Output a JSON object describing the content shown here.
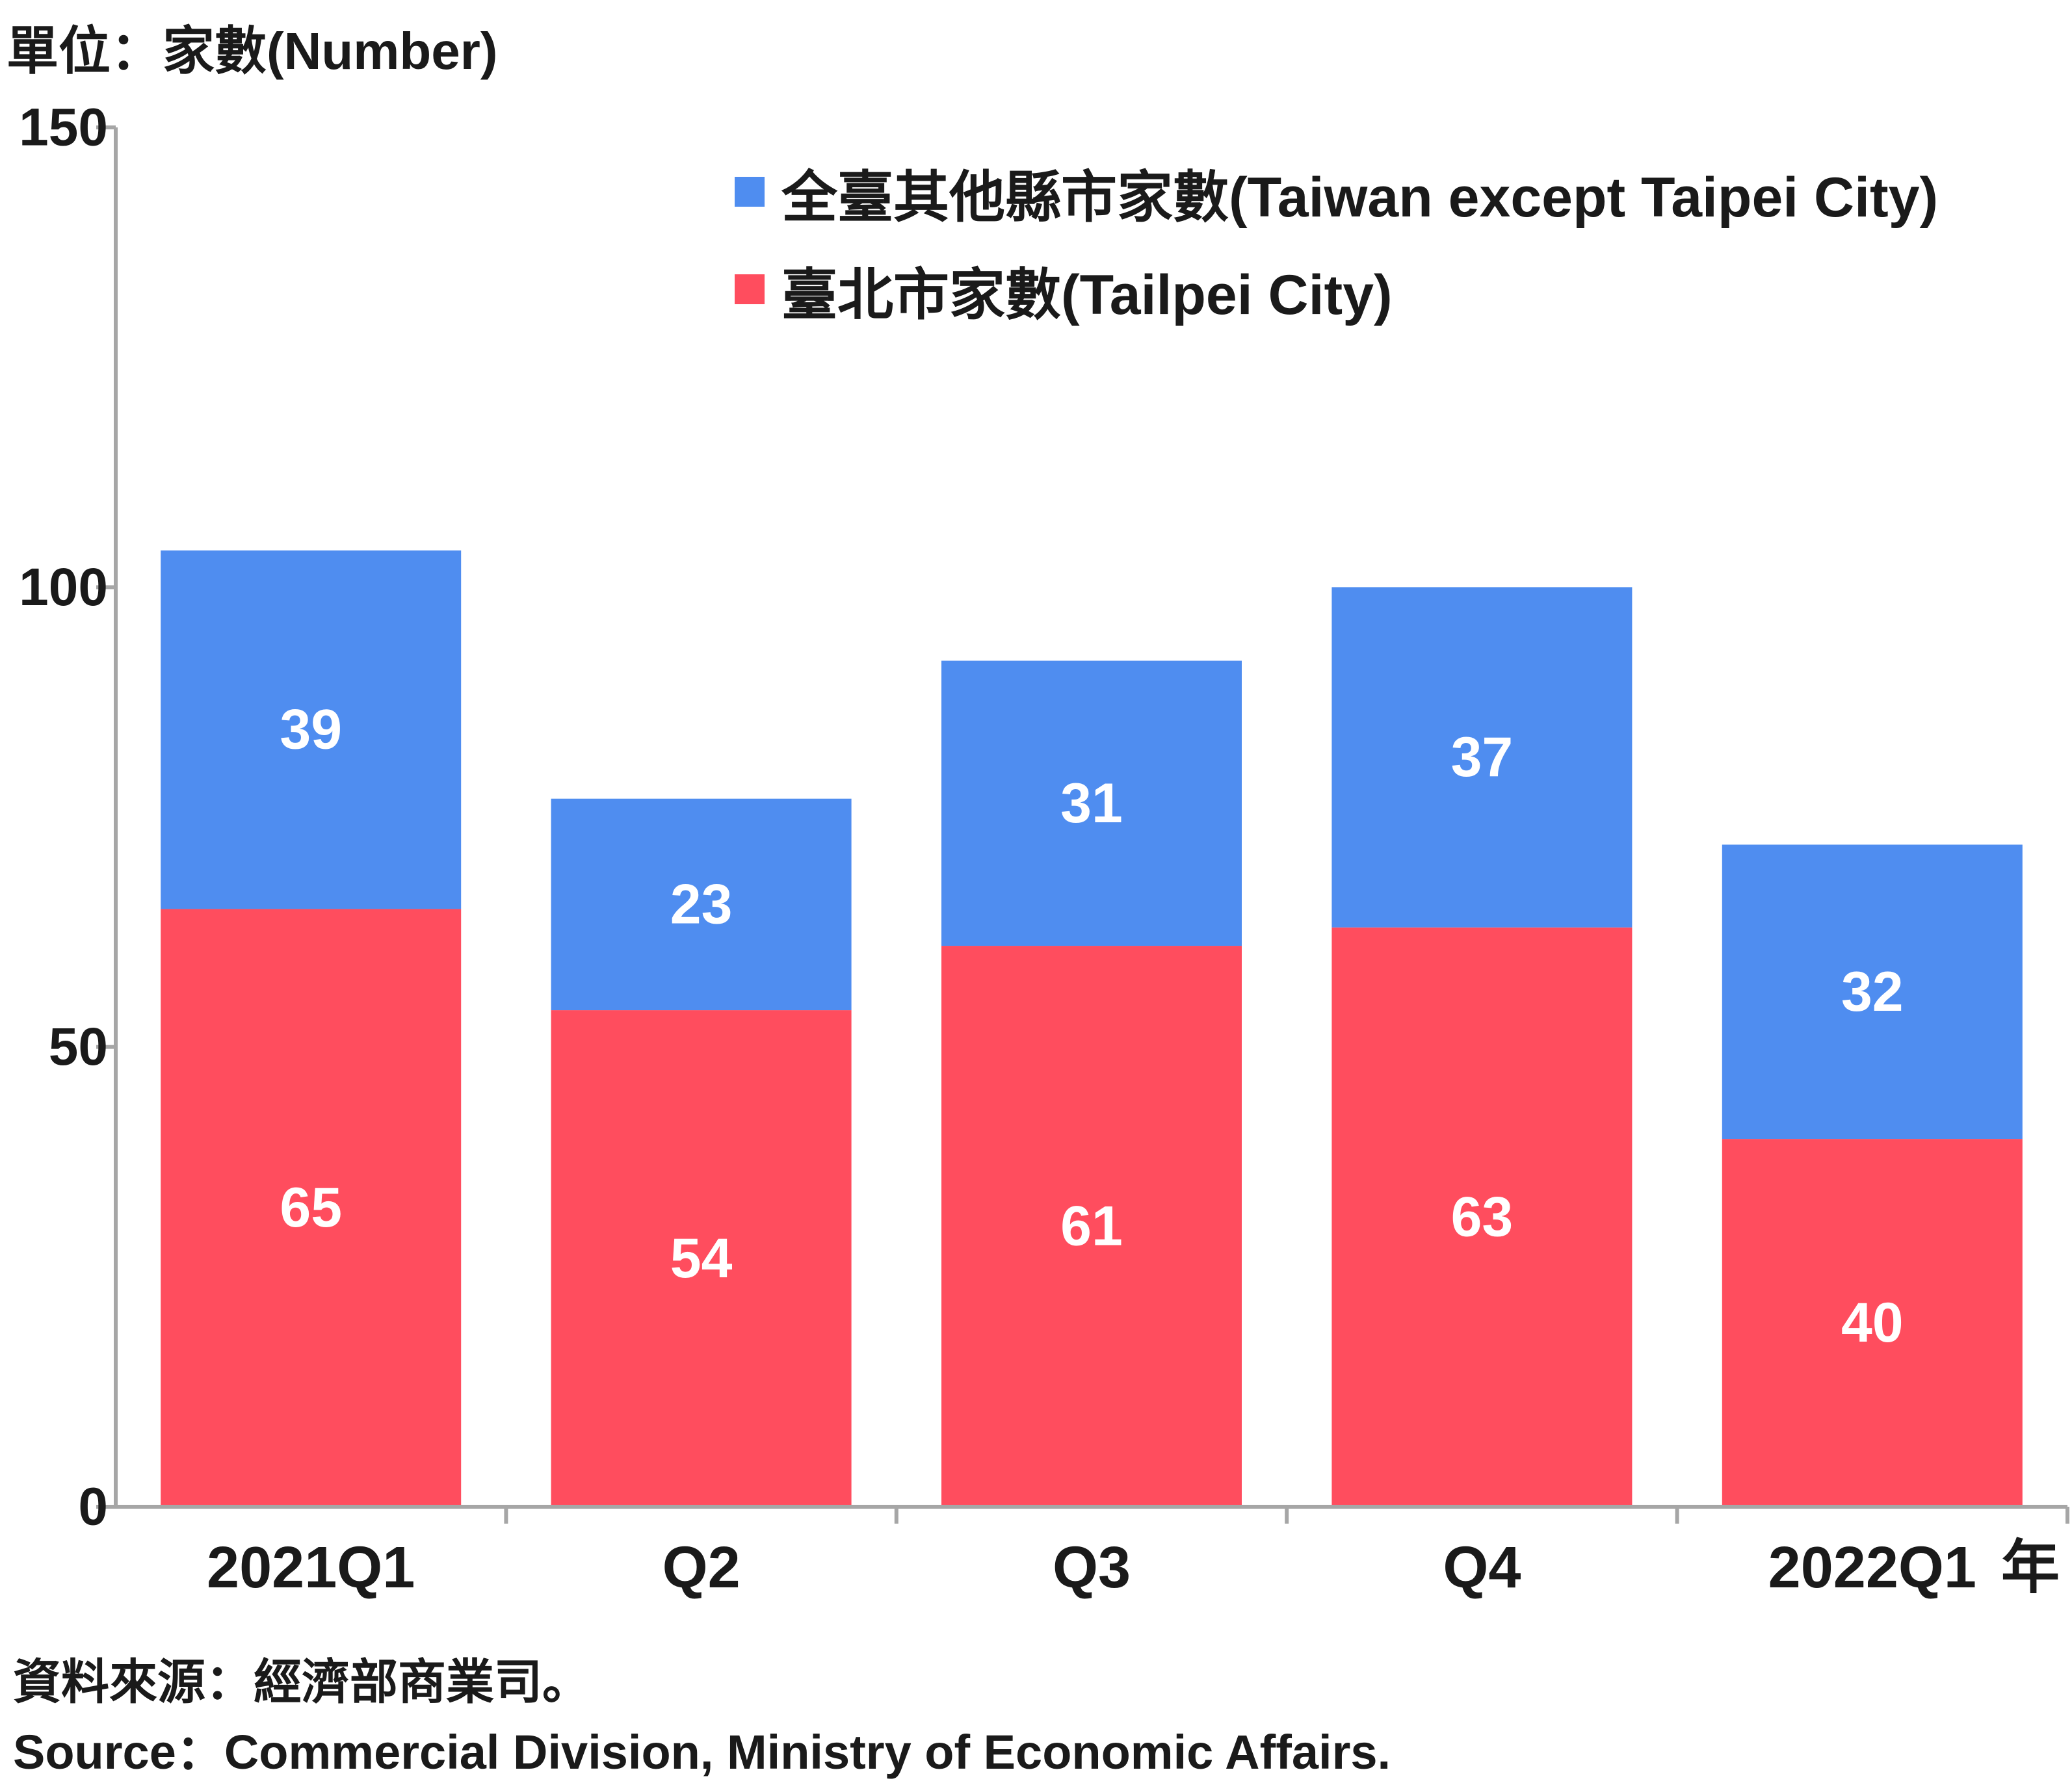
{
  "unit_label": "單位：家數(Number)",
  "source": {
    "line1": "資料來源：經濟部商業司。",
    "line2": "Source：Commercial Division, Ministry of Economic Affairs."
  },
  "chart_data": {
    "type": "bar",
    "stacked": true,
    "title": "",
    "xlabel": "年",
    "ylabel": "單位：家數(Number)",
    "categories": [
      "2021Q1",
      "Q2",
      "Q3",
      "Q4",
      "2022Q1"
    ],
    "series": [
      {
        "name": "臺北市家數(Tailpei City)",
        "color": "#ff4d5e",
        "values": [
          65,
          54,
          61,
          63,
          40
        ]
      },
      {
        "name": "全臺其他縣市家數(Taiwan except Taipei City)",
        "color": "#4f8df0",
        "values": [
          39,
          23,
          31,
          37,
          32
        ]
      }
    ],
    "ylim": [
      0,
      150
    ],
    "yticks": [
      0,
      50,
      100,
      150
    ],
    "grid": false,
    "legend": "top-right",
    "data_labels": true
  }
}
